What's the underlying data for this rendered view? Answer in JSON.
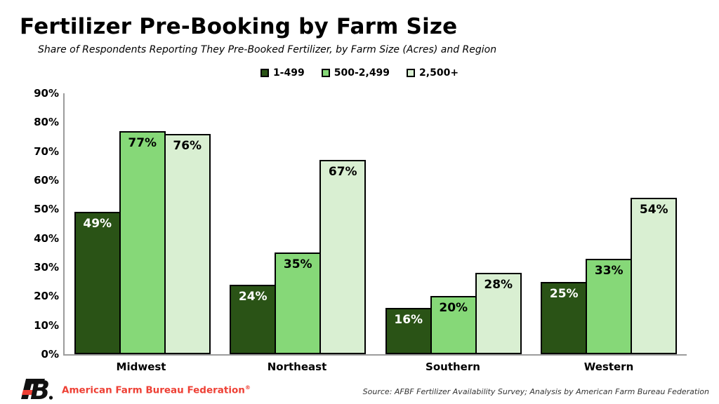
{
  "title": "Fertilizer Pre-Booking by Farm Size",
  "subtitle": "Share of Respondents Reporting They Pre-Booked Fertilizer, by Farm Size (Acres) and Region",
  "chart_data": {
    "type": "bar",
    "title": "Fertilizer Pre-Booking by Farm Size",
    "categories": [
      "Midwest",
      "Northeast",
      "Southern",
      "Western"
    ],
    "series": [
      {
        "name": "1-499",
        "color": "#2A5316",
        "label_color": "#FFFFFF",
        "values": [
          49,
          24,
          16,
          25
        ]
      },
      {
        "name": "500-2,499",
        "color": "#86D878",
        "label_color": "#000000",
        "values": [
          77,
          35,
          20,
          33
        ]
      },
      {
        "name": "2,500+",
        "color": "#D9EFD2",
        "label_color": "#000000",
        "values": [
          76,
          67,
          28,
          54
        ]
      }
    ],
    "xlabel": "",
    "ylabel": "",
    "ylim": [
      0,
      90
    ],
    "yticks": [
      "0%",
      "10%",
      "20%",
      "30%",
      "40%",
      "50%",
      "60%",
      "70%",
      "80%",
      "90%"
    ],
    "value_suffix": "%",
    "legend_position": "top",
    "grid": false
  },
  "footer": {
    "logo_icon": "afbf-fb-logo",
    "brand": "American Farm Bureau Federation",
    "registered_mark": "®",
    "source": "Source: AFBF Fertilizer Availability Survey; Analysis by American Farm Bureau Federation"
  },
  "colors": {
    "axis": "#9C9C9C",
    "bar_border": "#000000",
    "brand_red": "#EE4035",
    "text": "#000000"
  }
}
